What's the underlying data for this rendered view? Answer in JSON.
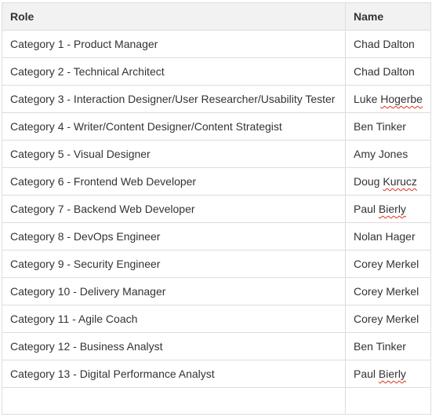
{
  "table": {
    "headers": {
      "role": "Role",
      "name": "Name"
    },
    "rows": [
      {
        "role": "Category 1 - Product Manager",
        "name_parts": [
          "Chad",
          "Dalton"
        ],
        "misspelled": false
      },
      {
        "role": "Category 2 - Technical Architect",
        "name_parts": [
          "Chad",
          "Dalton"
        ],
        "misspelled": false
      },
      {
        "role": "Category 3 - Interaction Designer/User Researcher/Usability Tester",
        "name_parts": [
          "Luke",
          "Hogerbe"
        ],
        "misspelled": true
      },
      {
        "role": "Category 4 - Writer/Content Designer/Content Strategist",
        "name_parts": [
          "Ben",
          "Tinker"
        ],
        "misspelled": false
      },
      {
        "role": "Category 5 - Visual Designer",
        "name_parts": [
          "Amy",
          "Jones"
        ],
        "misspelled": false
      },
      {
        "role": "Category 6 - Frontend Web Developer",
        "name_parts": [
          "Doug",
          "Kurucz"
        ],
        "misspelled": true
      },
      {
        "role": "Category 7 - Backend Web Developer",
        "name_parts": [
          "Paul",
          "Bierly"
        ],
        "misspelled": true
      },
      {
        "role": "Category 8 - DevOps Engineer",
        "name_parts": [
          "Nolan",
          "Hager"
        ],
        "misspelled": false
      },
      {
        "role": "Category 9 - Security Engineer",
        "name_parts": [
          "Corey",
          "Merkel"
        ],
        "misspelled": false
      },
      {
        "role": "Category 10 - Delivery Manager",
        "name_parts": [
          "Corey",
          "Merkel"
        ],
        "misspelled": false
      },
      {
        "role": "Category 11 - Agile Coach",
        "name_parts": [
          "Corey",
          "Merkel"
        ],
        "misspelled": false
      },
      {
        "role": "Category 12 - Business Analyst",
        "name_parts": [
          "Ben",
          "Tinker"
        ],
        "misspelled": false
      },
      {
        "role": "Category 13 - Digital Performance Analyst",
        "name_parts": [
          "Paul",
          "Bierly"
        ],
        "misspelled": true
      },
      {
        "role": "",
        "name_parts": [
          "",
          ""
        ],
        "misspelled": false
      }
    ]
  },
  "colors": {
    "header_bg": "#f2f2f2",
    "border": "#dddddd",
    "text": "#333333",
    "spellcheck_underline": "#e0301e"
  }
}
